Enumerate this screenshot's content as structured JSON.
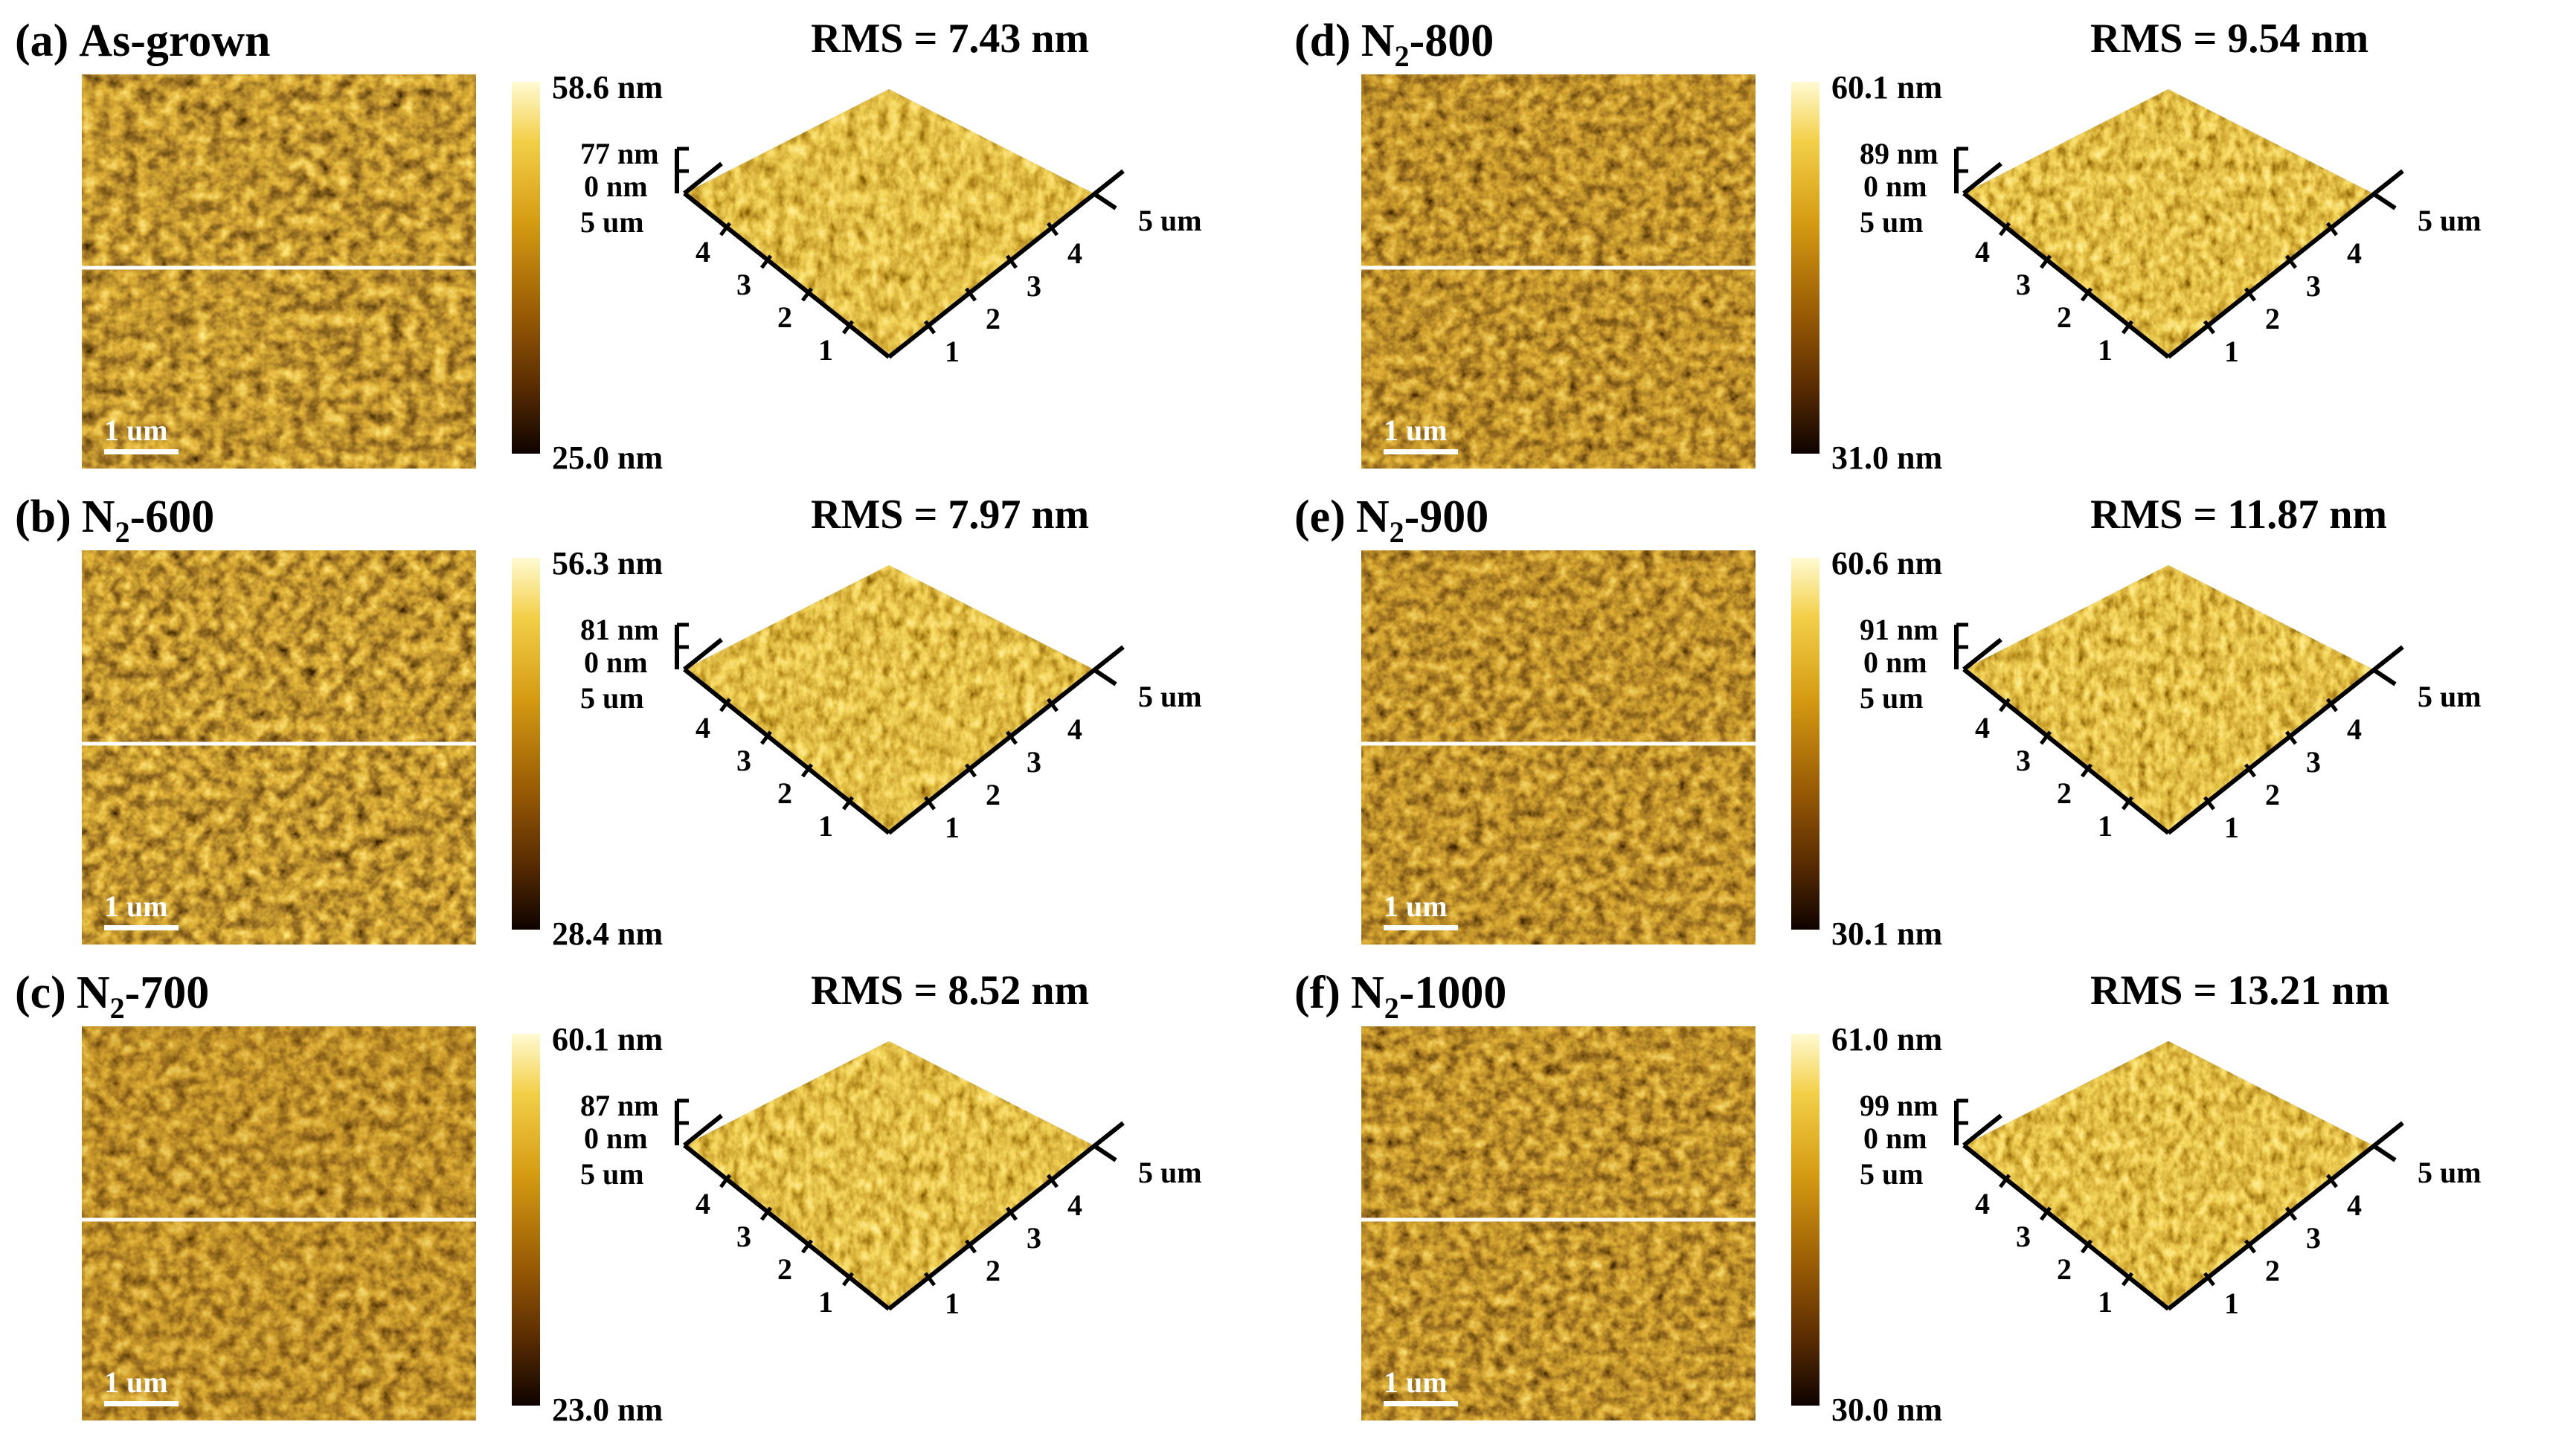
{
  "figure": {
    "panels": [
      {
        "label": "(a)",
        "name": "As-grown",
        "sub": "",
        "rms": "RMS = 7.43 nm",
        "cbar_max": "58.6 nm",
        "cbar_min": "25.0 nm",
        "z_max": "77 nm",
        "z_min": "0 nm",
        "scale_bar": "1 um",
        "axis_max": "5 um",
        "ticks": [
          "1",
          "2",
          "3",
          "4"
        ],
        "brightness": 1.0,
        "grain": 2
      },
      {
        "label": "(b)",
        "name": "-600",
        "sub": "2",
        "prefix": "N",
        "rms": "RMS = 7.97 nm",
        "cbar_max": "56.3 nm",
        "cbar_min": "28.4 nm",
        "z_max": "81 nm",
        "z_min": "0 nm",
        "scale_bar": "1 um",
        "axis_max": "5 um",
        "ticks": [
          "1",
          "2",
          "3",
          "4"
        ],
        "brightness": 1.0,
        "grain": 3
      },
      {
        "label": "(c)",
        "name": "-700",
        "sub": "2",
        "prefix": "N",
        "rms": "RMS = 8.52 nm",
        "cbar_max": "60.1 nm",
        "cbar_min": "23.0 nm",
        "z_max": "87 nm",
        "z_min": "0 nm",
        "scale_bar": "1 um",
        "axis_max": "5 um",
        "ticks": [
          "1",
          "2",
          "3",
          "4"
        ],
        "brightness": 0.85,
        "grain": 3
      },
      {
        "label": "(d)",
        "name": "-800",
        "sub": "2",
        "prefix": "N",
        "rms": "RMS = 9.54 nm",
        "cbar_max": "60.1 nm",
        "cbar_min": "31.0 nm",
        "z_max": "89 nm",
        "z_min": "0 nm",
        "scale_bar": "1 um",
        "axis_max": "5 um",
        "ticks": [
          "1",
          "2",
          "3",
          "4"
        ],
        "brightness": 0.9,
        "grain": 4
      },
      {
        "label": "(e)",
        "name": "-900",
        "sub": "2",
        "prefix": "N",
        "rms": "RMS = 11.87 nm",
        "cbar_max": "60.6 nm",
        "cbar_min": "30.1 nm",
        "z_max": "91 nm",
        "z_min": "0 nm",
        "scale_bar": "1 um",
        "axis_max": "5 um",
        "ticks": [
          "1",
          "2",
          "3",
          "4"
        ],
        "brightness": 0.9,
        "grain": 4
      },
      {
        "label": "(f)",
        "name": "-1000",
        "sub": "2",
        "prefix": "N",
        "rms": "RMS = 13.21 nm",
        "cbar_max": "61.0 nm",
        "cbar_min": "30.0 nm",
        "z_max": "99 nm",
        "z_min": "0 nm",
        "scale_bar": "1 um",
        "axis_max": "5 um",
        "ticks": [
          "1",
          "2",
          "3",
          "4"
        ],
        "brightness": 0.9,
        "grain": 4
      }
    ]
  },
  "colors": {
    "afm_dark": "#1a0800",
    "afm_mid": "#a86a08",
    "afm_light": "#f6d765",
    "line": "#ffffff"
  }
}
